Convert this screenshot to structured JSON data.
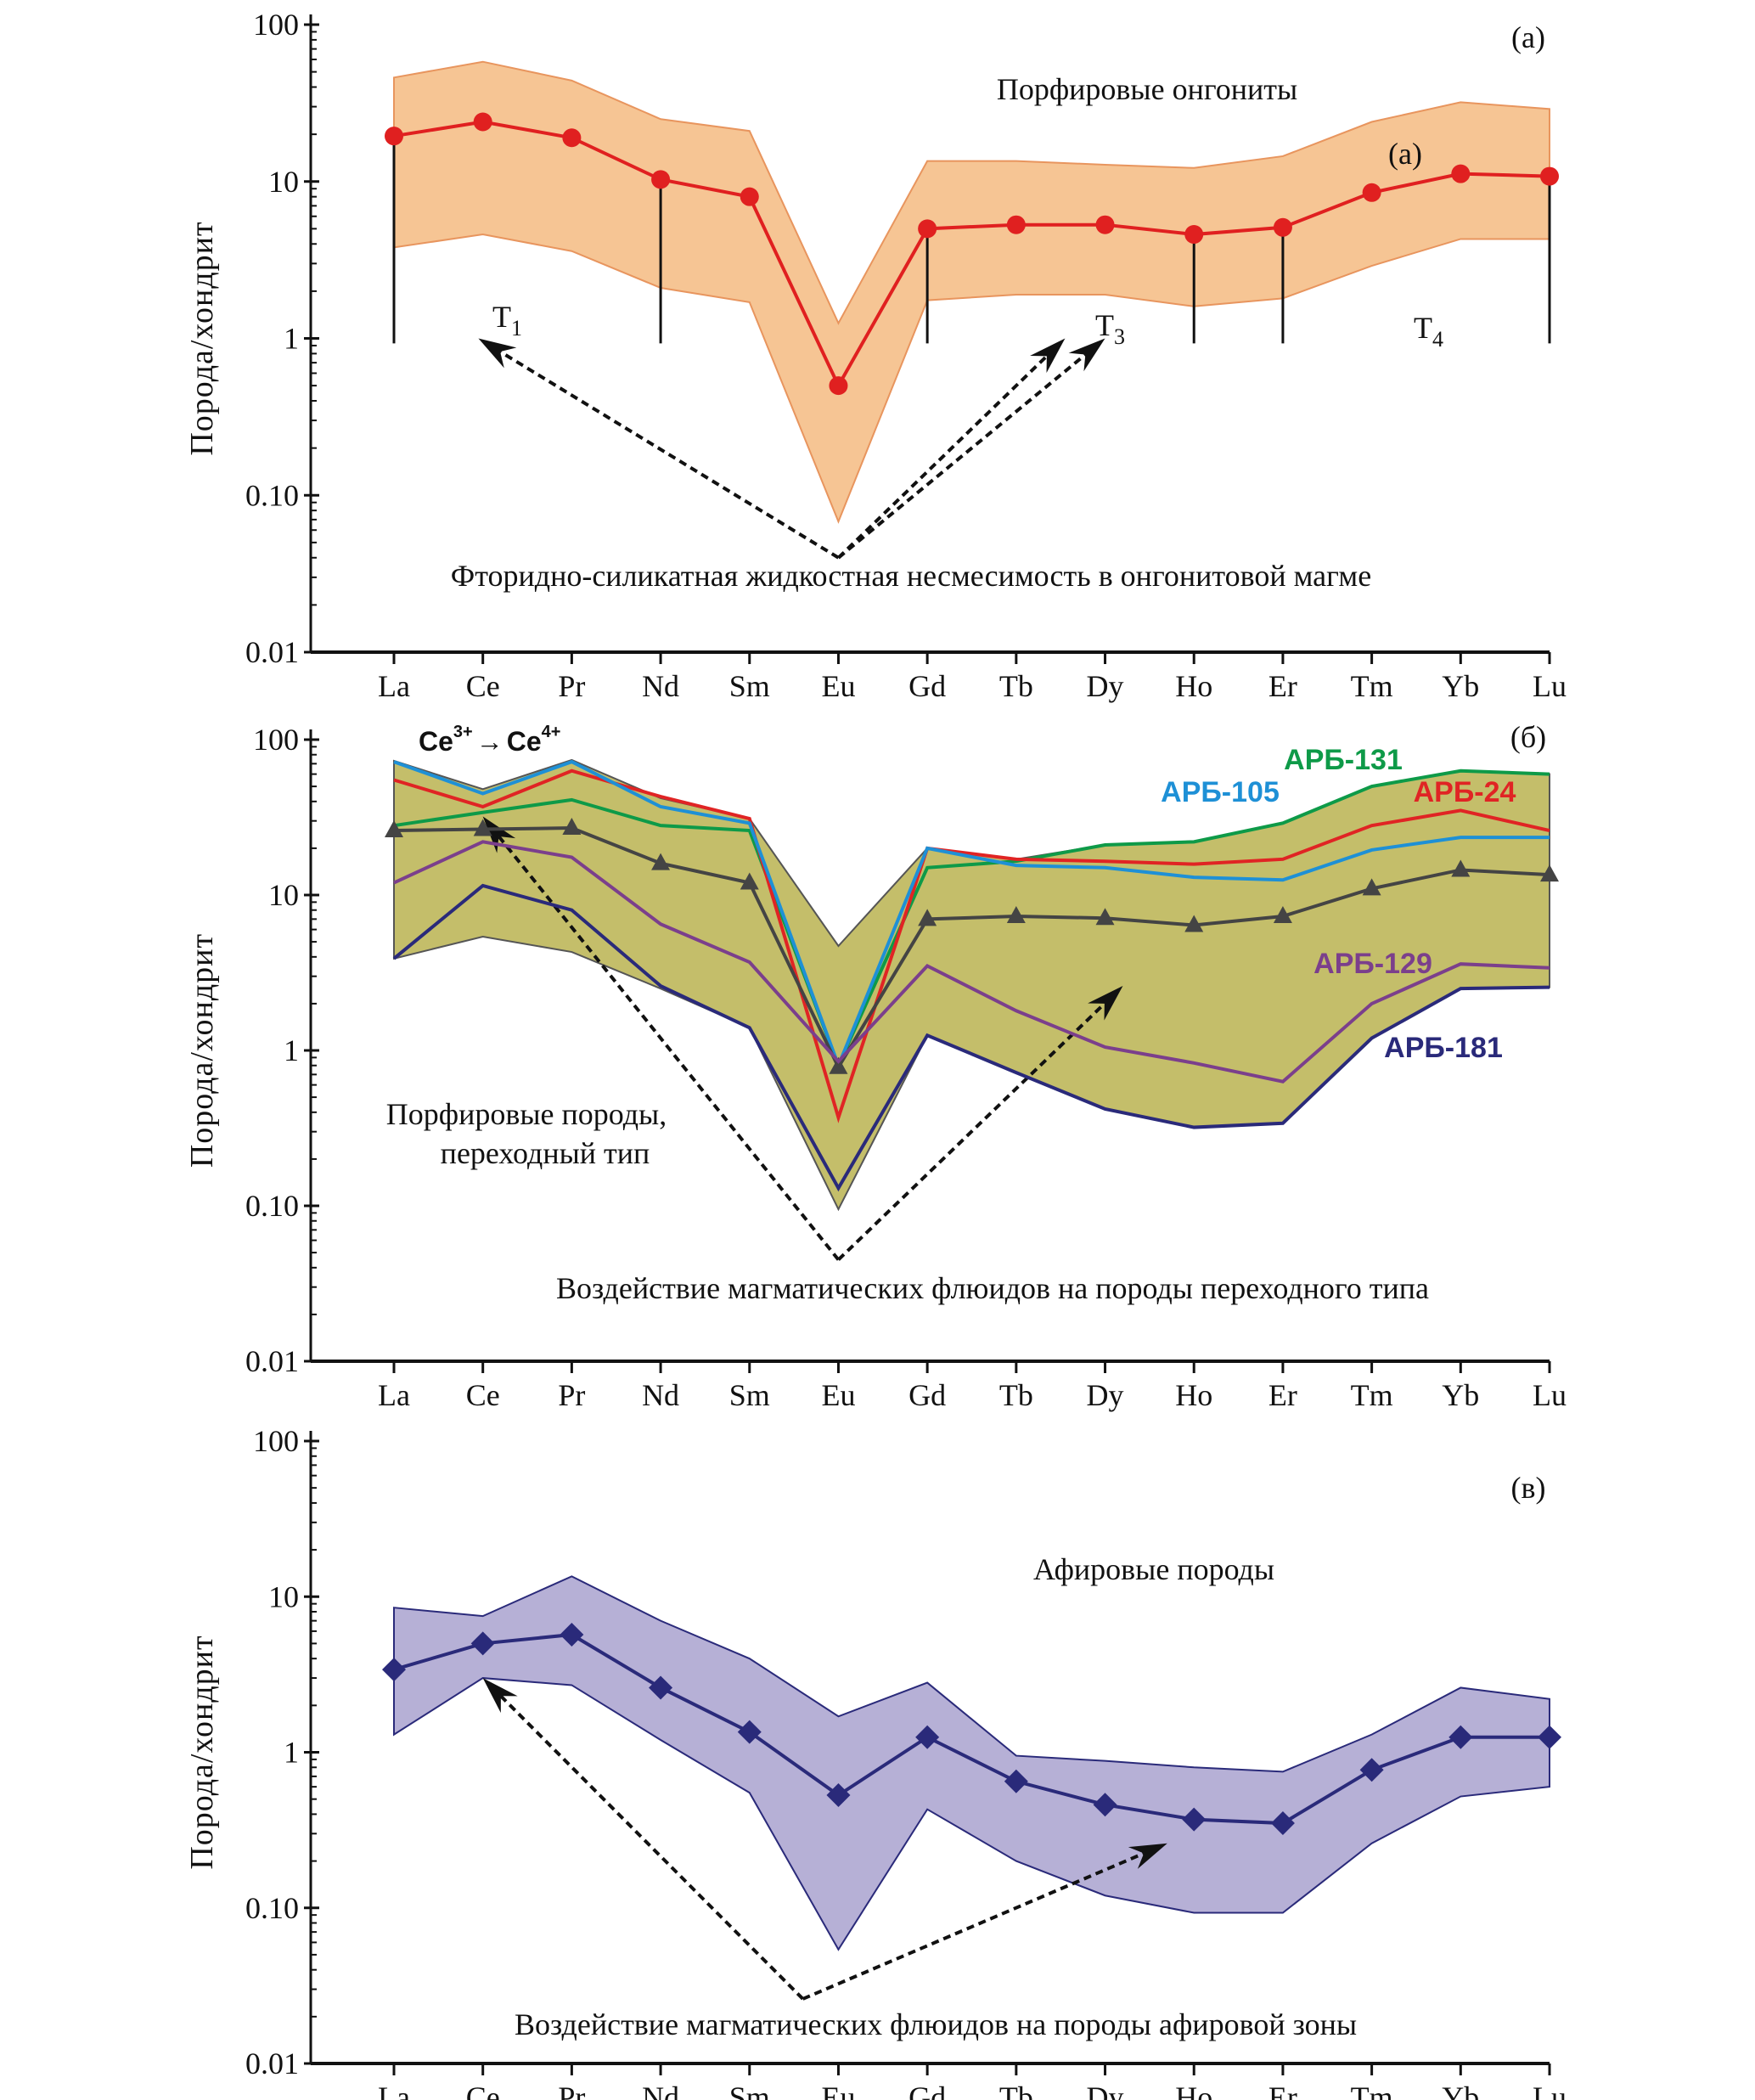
{
  "chart_data": [
    {
      "type": "line",
      "panel_label": "(а)",
      "ylabel": "Порода/хондрит",
      "yscale": "log",
      "ylim": [
        0.01,
        100
      ],
      "yticks": [
        "100",
        "10",
        "1",
        "0.10",
        "0.01"
      ],
      "categories": [
        "La",
        "Ce",
        "Pr",
        "Nd",
        "Sm",
        "Eu",
        "Gd",
        "Tb",
        "Dy",
        "Ho",
        "Er",
        "Tm",
        "Yb",
        "Lu"
      ],
      "band": {
        "upper": [
          46,
          58,
          44,
          25,
          21,
          1.25,
          13.5,
          13.5,
          12.8,
          12.2,
          14.5,
          24,
          32,
          29
        ],
        "lower": [
          3.8,
          4.6,
          3.6,
          2.1,
          1.7,
          0.068,
          1.75,
          1.9,
          1.9,
          1.6,
          1.8,
          2.9,
          4.3,
          4.3
        ],
        "fill": "#f6c594",
        "stroke": "#e8955e"
      },
      "series": [
        {
          "values": [
            19.5,
            24,
            19,
            10.3,
            8,
            0.5,
            5,
            5.3,
            5.3,
            4.6,
            5.1,
            8.5,
            11.2,
            10.8
          ],
          "color": "#e02020",
          "marker": "circle"
        }
      ],
      "annotations": {
        "field_label": "Порфировые онгониты",
        "series_label": "(а)",
        "t1": {
          "main": "T",
          "sub": "1"
        },
        "t3": {
          "main": "T",
          "sub": "3"
        },
        "t4": {
          "main": "T",
          "sub": "4"
        },
        "process": "Фторидно-силикатная жидкостная несмесимость в онгонитовой магме"
      }
    },
    {
      "type": "line",
      "panel_label": "(б)",
      "ylabel": "Порода/хондрит",
      "yscale": "log",
      "ylim": [
        0.01,
        100
      ],
      "yticks": [
        "100",
        "10",
        "1",
        "0.10",
        "0.01"
      ],
      "categories": [
        "La",
        "Ce",
        "Pr",
        "Nd",
        "Sm",
        "Eu",
        "Gd",
        "Tb",
        "Dy",
        "Ho",
        "Er",
        "Tm",
        "Yb",
        "Lu"
      ],
      "band": {
        "upper": [
          73,
          48,
          74,
          42,
          31,
          4.7,
          20,
          17,
          21,
          22,
          29,
          50,
          63,
          60
        ],
        "lower": [
          3.9,
          5.4,
          4.3,
          2.5,
          1.4,
          0.095,
          1.25,
          0.72,
          0.42,
          0.32,
          0.34,
          1.2,
          2.5,
          2.55
        ],
        "fill": "#c4be6a",
        "stroke": "#555555"
      },
      "series": [
        {
          "name": "АРБ-131",
          "values": [
            28,
            34,
            41,
            28,
            26,
            0.8,
            15,
            16.5,
            21,
            22,
            29,
            50,
            63,
            60
          ],
          "color": "#0e9a48"
        },
        {
          "name": "АРБ-24",
          "values": [
            55,
            37,
            63,
            43,
            31,
            0.37,
            20,
            17,
            16.5,
            15.8,
            17,
            28,
            35,
            26
          ],
          "color": "#e02424"
        },
        {
          "name": "АРБ-105",
          "values": [
            72,
            45,
            72,
            37,
            29,
            0.8,
            20,
            15.5,
            15,
            13,
            12.5,
            19.5,
            23.5,
            23.5
          ],
          "color": "#1e90d6"
        },
        {
          "values": [
            26,
            26.5,
            27,
            16,
            12,
            0.78,
            7,
            7.3,
            7.1,
            6.4,
            7.3,
            11,
            14.5,
            13.5
          ],
          "color": "#444444",
          "marker": "triangle"
        },
        {
          "name": "АРБ-129",
          "values": [
            12,
            22,
            17.5,
            6.5,
            3.7,
            0.85,
            3.5,
            1.8,
            1.05,
            0.83,
            0.63,
            2,
            3.6,
            3.4
          ],
          "color": "#7b3f8c"
        },
        {
          "name": "АРБ-181",
          "values": [
            3.9,
            11.5,
            8,
            2.6,
            1.4,
            0.13,
            1.25,
            0.72,
            0.42,
            0.32,
            0.34,
            1.2,
            2.5,
            2.55
          ],
          "color": "#2a2a7a"
        }
      ],
      "annotations": {
        "ce_base": "Ce",
        "ce_sup1": "3+",
        "arrow": "→",
        "ce_sup2": "4+",
        "field_label_1": "Порфировые породы,",
        "field_label_2": "переходный тип",
        "process": "Воздействие магматических флюидов на породы переходного типа"
      }
    },
    {
      "type": "line",
      "panel_label": "(в)",
      "ylabel": "Порода/хондрит",
      "yscale": "log",
      "ylim": [
        0.01,
        100
      ],
      "yticks": [
        "100",
        "10",
        "1",
        "0.10",
        "0.01"
      ],
      "categories": [
        "La",
        "Ce",
        "Pr",
        "Nd",
        "Sm",
        "Eu",
        "Gd",
        "Tb",
        "Dy",
        "Ho",
        "Er",
        "Tm",
        "Yb",
        "Lu"
      ],
      "band": {
        "upper": [
          8.5,
          7.5,
          13.5,
          7,
          4,
          1.7,
          2.8,
          0.95,
          0.88,
          0.8,
          0.75,
          1.3,
          2.6,
          2.2
        ],
        "lower": [
          1.3,
          3,
          2.7,
          1.2,
          0.55,
          0.054,
          0.43,
          0.2,
          0.12,
          0.093,
          0.093,
          0.26,
          0.52,
          0.6
        ],
        "fill": "#b6b0d6",
        "stroke": "#2a2a7a"
      },
      "series": [
        {
          "values": [
            3.4,
            5,
            5.7,
            2.6,
            1.35,
            0.53,
            1.25,
            0.65,
            0.46,
            0.37,
            0.35,
            0.77,
            1.25,
            1.25
          ],
          "color": "#2a2a7a",
          "marker": "diamond"
        }
      ],
      "annotations": {
        "field_label": "Афировые породы",
        "process": "Воздействие магматических флюидов на породы афировой зоны"
      }
    }
  ]
}
